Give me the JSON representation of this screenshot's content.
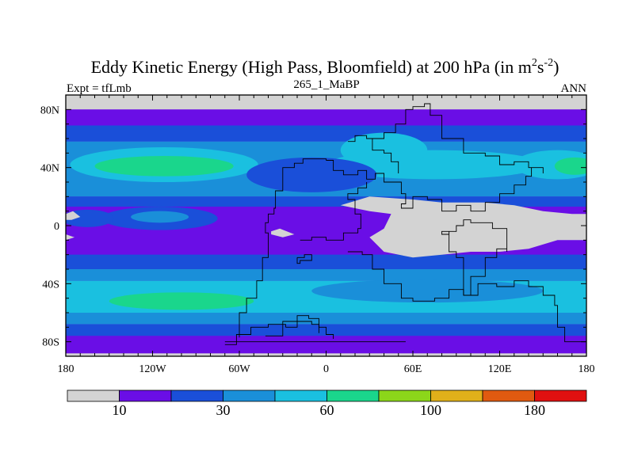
{
  "chart_data": {
    "type": "heatmap",
    "title_main": "Eddy Kinetic Energy (High Pass, Bloomfield) at 200 hPa (in m",
    "title_unit_m_exp": "2",
    "title_unit_s": "s",
    "title_unit_s_exp": "-2",
    "title_close": ")",
    "subtitle": "265_1_MaBP",
    "left_label": "Expt = tfLmb",
    "right_label": "ANN",
    "x_ticks": [
      {
        "value": -180,
        "label": "180"
      },
      {
        "value": -120,
        "label": "120W"
      },
      {
        "value": -60,
        "label": "60W"
      },
      {
        "value": 0,
        "label": "0"
      },
      {
        "value": 60,
        "label": "60E"
      },
      {
        "value": 120,
        "label": "120E"
      },
      {
        "value": 180,
        "label": "180"
      }
    ],
    "y_ticks": [
      {
        "value": 80,
        "label": "80N"
      },
      {
        "value": 40,
        "label": "40N"
      },
      {
        "value": 0,
        "label": "0"
      },
      {
        "value": -40,
        "label": "40S"
      },
      {
        "value": -80,
        "label": "80S"
      }
    ],
    "xlim": [
      -180,
      180
    ],
    "ylim": [
      -90,
      90
    ],
    "colorbar": {
      "colors": [
        "#d3d3d3",
        "#6a0ee6",
        "#1a4fd9",
        "#1a8fd9",
        "#1ac0e0",
        "#1ad68c",
        "#8cd61a",
        "#e0b01a",
        "#e05a10",
        "#e01010"
      ],
      "labels": [
        {
          "index": 1,
          "label": "10"
        },
        {
          "index": 3,
          "label": "30"
        },
        {
          "index": 5,
          "label": "60"
        },
        {
          "index": 7,
          "label": "100"
        },
        {
          "index": 9,
          "label": "180"
        }
      ]
    },
    "field_levels": {
      "background": 1,
      "bands": [
        {
          "lat_north": 90,
          "lat_south": 80,
          "level": 0
        },
        {
          "lat_north": 80,
          "lat_south": 69,
          "level": 1
        },
        {
          "lat_north": 69,
          "lat_south": 58,
          "level": 2
        },
        {
          "lat_north": 58,
          "lat_south": 20,
          "level": 3
        },
        {
          "lat_north": 20,
          "lat_south": 13,
          "level": 2
        },
        {
          "lat_north": 13,
          "lat_south": -20,
          "level": 1
        },
        {
          "lat_north": -20,
          "lat_south": -30,
          "level": 2
        },
        {
          "lat_north": -30,
          "lat_south": -38,
          "level": 3
        },
        {
          "lat_north": -38,
          "lat_south": -60,
          "level": 4
        },
        {
          "lat_north": -60,
          "lat_south": -68,
          "level": 3
        },
        {
          "lat_north": -68,
          "lat_south": -76,
          "level": 2
        },
        {
          "lat_north": -76,
          "lat_south": -88,
          "level": 1
        },
        {
          "lat_north": -88,
          "lat_south": -90,
          "level": 0
        }
      ],
      "blobs": [
        {
          "lon": -112,
          "lat": 42,
          "rlon": 65,
          "rlat": 12,
          "level": 4
        },
        {
          "lon": -112,
          "lat": 41,
          "rlon": 48,
          "rlat": 7,
          "level": 5
        },
        {
          "lon": 160,
          "lat": 42,
          "rlon": 30,
          "rlat": 10,
          "level": 4
        },
        {
          "lon": 172,
          "lat": 41,
          "rlon": 14,
          "rlat": 6,
          "level": 5
        },
        {
          "lon": 75,
          "lat": 42,
          "rlon": 75,
          "rlat": 10,
          "level": 4
        },
        {
          "lon": 40,
          "lat": 52,
          "rlon": 30,
          "rlat": 12,
          "level": 4
        },
        {
          "lon": -10,
          "lat": 35,
          "rlon": 45,
          "rlat": 12,
          "level": 2
        },
        {
          "lon": -115,
          "lat": 5,
          "rlon": 40,
          "rlat": 8,
          "level": 2
        },
        {
          "lon": -165,
          "lat": 5,
          "rlon": 18,
          "rlat": 6,
          "level": 2
        },
        {
          "lon": -115,
          "lat": 6,
          "rlon": 20,
          "rlat": 4,
          "level": 3
        },
        {
          "lon": 70,
          "lat": -45,
          "rlon": 80,
          "rlat": 8,
          "level": 3
        },
        {
          "lon": -100,
          "lat": -52,
          "rlon": 50,
          "rlat": 6,
          "level": 5
        }
      ],
      "grey_areas": [
        [
          [
            10,
            14
          ],
          [
            30,
            20
          ],
          [
            60,
            18
          ],
          [
            80,
            16
          ],
          [
            110,
            16
          ],
          [
            130,
            14
          ],
          [
            150,
            10
          ],
          [
            170,
            8
          ],
          [
            180,
            8
          ],
          [
            180,
            -10
          ],
          [
            160,
            -10
          ],
          [
            140,
            -16
          ],
          [
            120,
            -18
          ],
          [
            100,
            -18
          ],
          [
            80,
            -20
          ],
          [
            60,
            -22
          ],
          [
            40,
            -18
          ],
          [
            30,
            -8
          ],
          [
            40,
            -2
          ],
          [
            45,
            8
          ],
          [
            30,
            10
          ],
          [
            10,
            14
          ]
        ],
        [
          [
            -180,
            8
          ],
          [
            -175,
            10
          ],
          [
            -170,
            6
          ],
          [
            -176,
            4
          ],
          [
            -180,
            4
          ]
        ],
        [
          [
            -180,
            -6
          ],
          [
            -174,
            -8
          ],
          [
            -180,
            -10
          ]
        ],
        [
          [
            -38,
            -4
          ],
          [
            -32,
            -2
          ],
          [
            -22,
            -6
          ],
          [
            -30,
            -8
          ],
          [
            -38,
            -6
          ]
        ]
      ]
    },
    "coastlines": [
      [
        [
          -42,
          -76
        ],
        [
          -30,
          -66
        ],
        [
          -20,
          -62
        ],
        [
          -12,
          -64
        ],
        [
          -5,
          -70
        ],
        [
          0,
          -75
        ],
        [
          5,
          -78
        ]
      ],
      [
        [
          -28,
          -70
        ],
        [
          -20,
          -66
        ],
        [
          -10,
          -68
        ],
        [
          -5,
          -74
        ]
      ],
      [
        [
          -70,
          -82
        ],
        [
          -62,
          -75
        ],
        [
          -52,
          -70
        ],
        [
          -40,
          -68
        ],
        [
          -28,
          -70
        ]
      ],
      [
        [
          -70,
          -80
        ],
        [
          -10,
          -80
        ],
        [
          30,
          -80
        ],
        [
          55,
          -80
        ]
      ],
      [
        [
          -60,
          -77
        ],
        [
          -60,
          -60
        ],
        [
          -55,
          -50
        ],
        [
          -48,
          -38
        ],
        [
          -44,
          -22
        ],
        [
          -40,
          -14
        ],
        [
          -40,
          -5
        ],
        [
          -42,
          2
        ],
        [
          -40,
          8
        ],
        [
          -36,
          12
        ],
        [
          -35,
          24
        ],
        [
          -30,
          40
        ],
        [
          -22,
          43
        ],
        [
          -16,
          46
        ],
        [
          0,
          45
        ]
      ],
      [
        [
          0,
          45
        ],
        [
          5,
          38
        ],
        [
          12,
          35
        ],
        [
          22,
          38
        ],
        [
          28,
          32
        ],
        [
          34,
          36
        ],
        [
          40,
          30
        ],
        [
          45,
          30
        ],
        [
          52,
          22
        ],
        [
          55,
          15
        ],
        [
          52,
          12
        ],
        [
          60,
          20
        ],
        [
          70,
          18
        ],
        [
          80,
          10
        ],
        [
          90,
          14
        ],
        [
          100,
          10
        ],
        [
          110,
          16
        ],
        [
          120,
          22
        ],
        [
          130,
          28
        ],
        [
          138,
          34
        ],
        [
          142,
          40
        ]
      ],
      [
        [
          15,
          -18
        ],
        [
          25,
          -20
        ],
        [
          32,
          -30
        ],
        [
          40,
          -40
        ],
        [
          52,
          -50
        ],
        [
          60,
          -52
        ],
        [
          75,
          -50
        ],
        [
          85,
          -44
        ],
        [
          95,
          -48
        ],
        [
          105,
          -40
        ],
        [
          118,
          -42
        ],
        [
          130,
          -38
        ],
        [
          140,
          -42
        ],
        [
          150,
          -48
        ],
        [
          158,
          -55
        ],
        [
          160,
          -70
        ],
        [
          165,
          -80
        ],
        [
          180,
          -80
        ]
      ],
      [
        [
          95,
          -48
        ],
        [
          100,
          -35
        ],
        [
          110,
          -22
        ],
        [
          118,
          -16
        ],
        [
          125,
          -18
        ],
        [
          125,
          -2
        ],
        [
          115,
          2
        ],
        [
          100,
          4
        ],
        [
          95,
          0
        ],
        [
          90,
          -4
        ],
        [
          85,
          -6
        ],
        [
          80,
          -4
        ],
        [
          85,
          -18
        ],
        [
          90,
          -22
        ],
        [
          95,
          -30
        ],
        [
          95,
          -48
        ]
      ],
      [
        [
          -20,
          -22
        ],
        [
          -15,
          -20
        ],
        [
          -10,
          -24
        ],
        [
          -18,
          -26
        ],
        [
          -20,
          -22
        ]
      ],
      [
        [
          28,
          60
        ],
        [
          40,
          64
        ],
        [
          48,
          70
        ],
        [
          55,
          80
        ],
        [
          60,
          82
        ],
        [
          68,
          84
        ],
        [
          72,
          76
        ],
        [
          80,
          60
        ],
        [
          95,
          50
        ],
        [
          110,
          48
        ],
        [
          120,
          42
        ],
        [
          130,
          44
        ],
        [
          140,
          40
        ],
        [
          150,
          36
        ]
      ],
      [
        [
          15,
          58
        ],
        [
          20,
          62
        ],
        [
          28,
          60
        ],
        [
          32,
          52
        ],
        [
          40,
          50
        ],
        [
          45,
          44
        ],
        [
          50,
          36
        ]
      ],
      [
        [
          -18,
          -10
        ],
        [
          -10,
          -8
        ],
        [
          0,
          -10
        ],
        [
          12,
          -5
        ],
        [
          22,
          -2
        ],
        [
          24,
          8
        ],
        [
          20,
          18
        ],
        [
          15,
          22
        ],
        [
          22,
          26
        ],
        [
          28,
          30
        ]
      ]
    ]
  }
}
